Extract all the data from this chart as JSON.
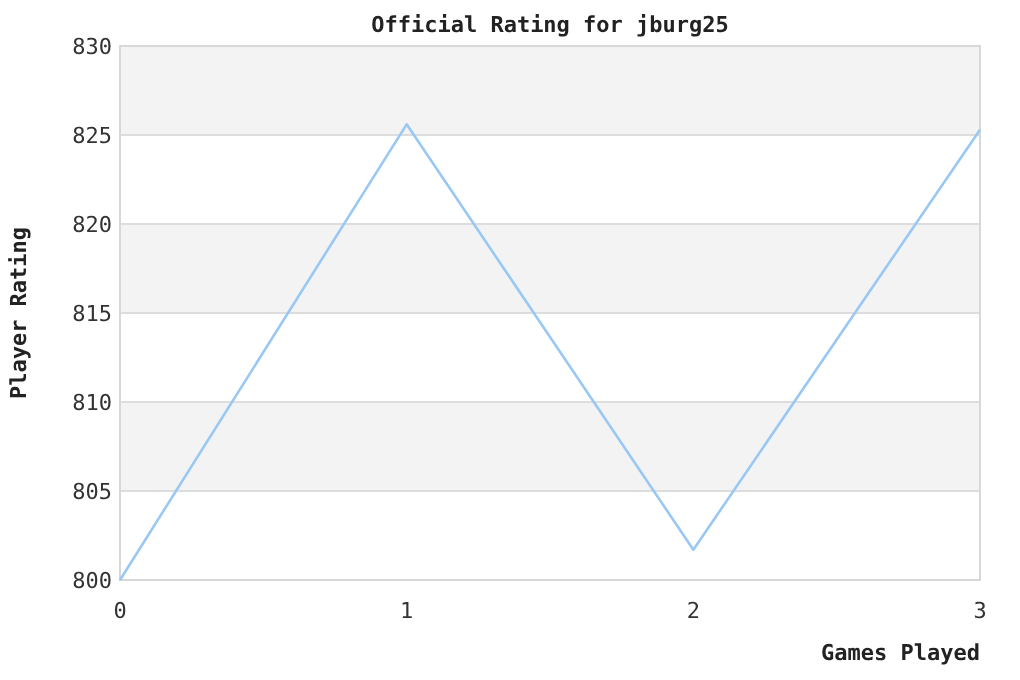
{
  "chart_data": {
    "type": "line",
    "title": "Official Rating for jburg25",
    "xlabel": "Games Played",
    "ylabel": "Player Rating",
    "x": [
      0,
      1,
      2,
      3
    ],
    "series": [
      {
        "color": "#99c8f5",
        "values": [
          800,
          825.6,
          801.7,
          825.3
        ]
      }
    ],
    "xlim": [
      0,
      3
    ],
    "xticks": [
      0,
      1,
      2,
      3
    ],
    "ylim": [
      800,
      830
    ],
    "yticks": [
      800,
      805,
      810,
      815,
      820,
      825,
      830
    ],
    "grid": "y",
    "marker": "none",
    "line_style": "solid"
  }
}
